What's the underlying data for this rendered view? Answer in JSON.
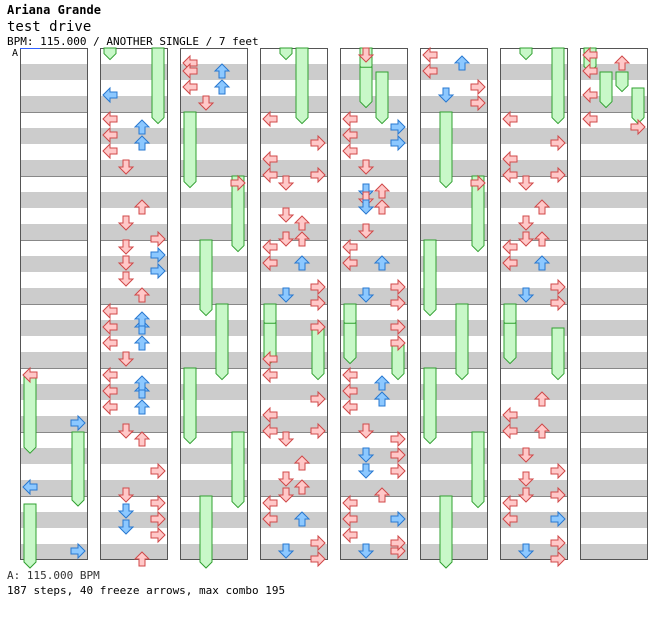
{
  "header": {
    "artist": "Ariana Grande",
    "song_title": "test drive",
    "info": "BPM: 115.000 / ANOTHER SINGLE / 7 feet"
  },
  "section_marker": "A",
  "footer": {
    "bpm_marker": "A: 115.000 BPM",
    "stats": "187 steps, 40 freeze arrows, max combo 195"
  },
  "colors": {
    "red_arrow": "#ffc8c8",
    "red_outline": "#d04848",
    "blue_arrow": "#8cc8ff",
    "blue_outline": "#2878d0",
    "freeze_fill": "#c8f8c8",
    "freeze_outline": "#30a030",
    "stripe": "#cccccc",
    "column_border": "#555555"
  },
  "icons": [
    "left-arrow-icon",
    "down-arrow-icon",
    "up-arrow-icon",
    "right-arrow-icon",
    "freeze-arrow-icon"
  ]
}
